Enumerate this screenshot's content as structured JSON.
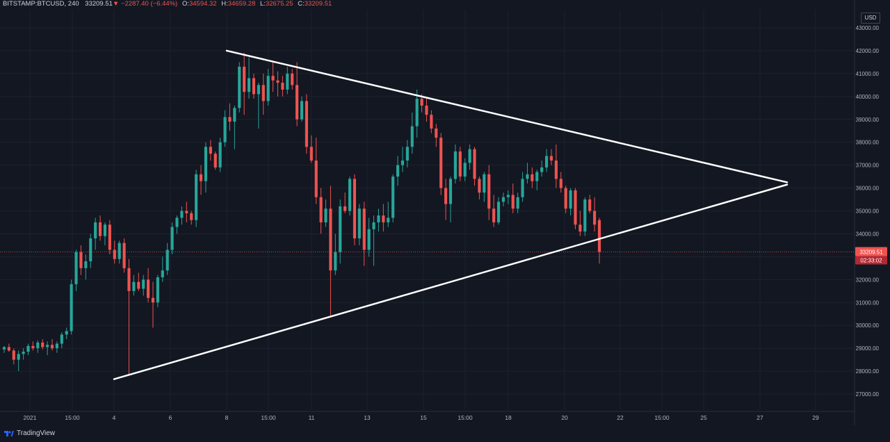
{
  "header": {
    "symbol": "BITSTAMP:BTCUSD",
    "interval": "240",
    "last": "33209.51",
    "change": "−2287.40 (−6.44%)",
    "o_label": "O:",
    "o": "34594.32",
    "h_label": "H:",
    "h": "34659.28",
    "l_label": "L:",
    "l": "32675.25",
    "c_label": "C:",
    "c": "33209.51"
  },
  "currency_label": "USD",
  "brand": "TradingView",
  "colors": {
    "up": "#26a69a",
    "down": "#ef5350",
    "bg": "#131722",
    "grid": "#1e222d",
    "trendline": "#ffffff"
  },
  "chart_data": {
    "type": "candlestick",
    "y_axis": {
      "range": [
        26400,
        43700
      ],
      "ticks": [
        "27000.00",
        "28000.00",
        "29000.00",
        "30000.00",
        "31000.00",
        "32000.00",
        "33000.00",
        "34000.00",
        "35000.00",
        "36000.00",
        "37000.00",
        "38000.00",
        "39000.00",
        "40000.00",
        "41000.00",
        "42000.00",
        "43000.00"
      ]
    },
    "x_axis": {
      "ticks": [
        "2021",
        "15:00",
        "4",
        "6",
        "8",
        "15:00",
        "11",
        "13",
        "15",
        "15:00",
        "18",
        "20",
        "22",
        "15:00",
        "25",
        "27",
        "29"
      ]
    },
    "last_price_label": "33209.51",
    "countdown_label": "02:33:02",
    "candles": [
      [
        28950,
        29100,
        28800,
        29050
      ],
      [
        29050,
        29200,
        28850,
        28900
      ],
      [
        28900,
        29000,
        28300,
        28500
      ],
      [
        28500,
        28900,
        28000,
        28750
      ],
      [
        28750,
        29000,
        28500,
        28850
      ],
      [
        28850,
        29200,
        28700,
        29100
      ],
      [
        29100,
        29300,
        28900,
        29000
      ],
      [
        29000,
        29350,
        28800,
        29250
      ],
      [
        29250,
        29400,
        28950,
        29050
      ],
      [
        29050,
        29300,
        28700,
        29150
      ],
      [
        29150,
        29400,
        28900,
        29000
      ],
      [
        29000,
        29300,
        28800,
        29200
      ],
      [
        29200,
        29700,
        29000,
        29600
      ],
      [
        29600,
        29900,
        29400,
        29750
      ],
      [
        29750,
        32000,
        29600,
        31800
      ],
      [
        31800,
        33300,
        31500,
        33200
      ],
      [
        33200,
        33500,
        32200,
        32500
      ],
      [
        32500,
        33100,
        32000,
        32800
      ],
      [
        32800,
        34000,
        32500,
        33800
      ],
      [
        33800,
        34700,
        33300,
        34500
      ],
      [
        34500,
        34800,
        33700,
        33900
      ],
      [
        33900,
        34500,
        33500,
        34400
      ],
      [
        34400,
        34600,
        33100,
        33300
      ],
      [
        33300,
        33700,
        32700,
        32900
      ],
      [
        32900,
        33700,
        32700,
        33600
      ],
      [
        33600,
        33800,
        32300,
        32500
      ],
      [
        32500,
        32900,
        27800,
        31500
      ],
      [
        31500,
        32200,
        31300,
        31900
      ],
      [
        31900,
        32300,
        31500,
        31600
      ],
      [
        31600,
        32200,
        31300,
        32000
      ],
      [
        32000,
        32500,
        31000,
        31200
      ],
      [
        31200,
        31900,
        29900,
        31000
      ],
      [
        31000,
        32200,
        30800,
        32100
      ],
      [
        32100,
        33000,
        31900,
        32400
      ],
      [
        32400,
        33600,
        32200,
        33300
      ],
      [
        33300,
        34500,
        33100,
        34300
      ],
      [
        34300,
        34800,
        34000,
        34700
      ],
      [
        34700,
        35200,
        34400,
        35000
      ],
      [
        35000,
        35400,
        34500,
        34900
      ],
      [
        34900,
        35000,
        34400,
        34600
      ],
      [
        34600,
        36800,
        34300,
        36600
      ],
      [
        36600,
        37000,
        35700,
        36300
      ],
      [
        36300,
        38000,
        35800,
        37800
      ],
      [
        37800,
        38100,
        37200,
        37500
      ],
      [
        37500,
        37600,
        36800,
        36900
      ],
      [
        36900,
        38200,
        36700,
        38000
      ],
      [
        38000,
        39400,
        37800,
        39100
      ],
      [
        39100,
        39700,
        38500,
        38900
      ],
      [
        38900,
        39600,
        37700,
        39500
      ],
      [
        39500,
        41500,
        39300,
        41300
      ],
      [
        41300,
        41900,
        39200,
        40200
      ],
      [
        40200,
        41700,
        39900,
        40800
      ],
      [
        40800,
        41000,
        39900,
        40100
      ],
      [
        40100,
        40600,
        38600,
        40500
      ],
      [
        40500,
        41000,
        39200,
        39800
      ],
      [
        39800,
        41200,
        39600,
        40900
      ],
      [
        40900,
        41500,
        40200,
        40700
      ],
      [
        40700,
        41100,
        40000,
        40600
      ],
      [
        40600,
        40900,
        40000,
        40300
      ],
      [
        40300,
        41300,
        40100,
        41000
      ],
      [
        41000,
        41200,
        40300,
        40500
      ],
      [
        40500,
        41500,
        38700,
        39000
      ],
      [
        39000,
        40000,
        38900,
        39800
      ],
      [
        39800,
        40100,
        37500,
        37800
      ],
      [
        37800,
        38300,
        37100,
        37200
      ],
      [
        37200,
        38200,
        35300,
        35600
      ],
      [
        35600,
        36000,
        34000,
        34500
      ],
      [
        34500,
        35500,
        34300,
        35100
      ],
      [
        35100,
        36100,
        30400,
        32400
      ],
      [
        32400,
        34000,
        32200,
        33200
      ],
      [
        33200,
        35500,
        32700,
        35200
      ],
      [
        35200,
        35800,
        34900,
        35000
      ],
      [
        35000,
        36500,
        34800,
        36400
      ],
      [
        36400,
        36600,
        33500,
        33800
      ],
      [
        33800,
        35300,
        33500,
        35100
      ],
      [
        35100,
        35400,
        32600,
        33300
      ],
      [
        33300,
        34700,
        33000,
        34200
      ],
      [
        34200,
        34800,
        32600,
        34500
      ],
      [
        34500,
        35100,
        34100,
        34800
      ],
      [
        34800,
        35300,
        34100,
        34500
      ],
      [
        34500,
        35400,
        34300,
        34700
      ],
      [
        34700,
        36600,
        34500,
        36500
      ],
      [
        36500,
        37400,
        36100,
        37000
      ],
      [
        37000,
        37800,
        36700,
        37200
      ],
      [
        37200,
        38100,
        36900,
        37800
      ],
      [
        37800,
        39300,
        37500,
        38700
      ],
      [
        38700,
        40300,
        38200,
        39900
      ],
      [
        39900,
        40100,
        39300,
        39600
      ],
      [
        39600,
        39900,
        38900,
        39200
      ],
      [
        39200,
        39400,
        38400,
        38600
      ],
      [
        38600,
        38800,
        37800,
        38200
      ],
      [
        38200,
        38400,
        35700,
        36000
      ],
      [
        36000,
        36400,
        34600,
        35300
      ],
      [
        35300,
        36500,
        34500,
        36400
      ],
      [
        36400,
        37900,
        36200,
        37600
      ],
      [
        37600,
        37800,
        36300,
        36500
      ],
      [
        36500,
        37300,
        36300,
        37100
      ],
      [
        37100,
        37900,
        36800,
        37700
      ],
      [
        37700,
        37800,
        36100,
        36400
      ],
      [
        36400,
        36500,
        35500,
        35800
      ],
      [
        35800,
        36700,
        35400,
        36600
      ],
      [
        36600,
        37000,
        34600,
        35100
      ],
      [
        35100,
        35700,
        34300,
        34500
      ],
      [
        34500,
        35600,
        34400,
        35400
      ],
      [
        35400,
        35800,
        35200,
        35600
      ],
      [
        35600,
        35900,
        35300,
        35700
      ],
      [
        35700,
        36200,
        34900,
        35100
      ],
      [
        35100,
        35800,
        34900,
        35600
      ],
      [
        35600,
        36700,
        35400,
        36400
      ],
      [
        36400,
        37100,
        36200,
        36600
      ],
      [
        36600,
        36900,
        36000,
        36300
      ],
      [
        36300,
        36800,
        35900,
        36700
      ],
      [
        36700,
        37200,
        36500,
        36900
      ],
      [
        36900,
        37700,
        36700,
        37400
      ],
      [
        37400,
        37700,
        37000,
        37200
      ],
      [
        37200,
        37900,
        36000,
        36400
      ],
      [
        36400,
        36700,
        35800,
        36000
      ],
      [
        36000,
        36100,
        34900,
        35100
      ],
      [
        35100,
        36000,
        34800,
        35900
      ],
      [
        35900,
        36000,
        34200,
        34400
      ],
      [
        34400,
        35000,
        33900,
        34100
      ],
      [
        34100,
        35600,
        33900,
        35500
      ],
      [
        35500,
        35700,
        34900,
        35000
      ],
      [
        35000,
        35600,
        34100,
        34400
      ],
      [
        34600,
        34700,
        32700,
        33210
      ]
    ],
    "trendlines": [
      {
        "from": [
          0,
          42000
        ],
        "to": [
          1,
          36250
        ]
      },
      {
        "from": [
          0,
          27650
        ],
        "to": [
          1,
          36150
        ]
      }
    ]
  }
}
